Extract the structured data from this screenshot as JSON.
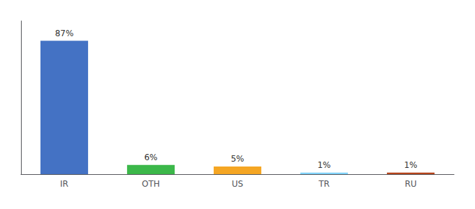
{
  "chart_data": {
    "type": "bar",
    "categories": [
      "IR",
      "OTH",
      "US",
      "TR",
      "RU"
    ],
    "values": [
      87,
      6,
      5,
      1,
      1
    ],
    "value_labels": [
      "87%",
      "6%",
      "5%",
      "1%",
      "1%"
    ],
    "colors": [
      "#4472c4",
      "#3cb84a",
      "#f5a623",
      "#81d4fa",
      "#b5451b"
    ],
    "ylim": [
      0,
      100
    ],
    "data_labels": true,
    "tick_labels": "x",
    "grid": false
  }
}
